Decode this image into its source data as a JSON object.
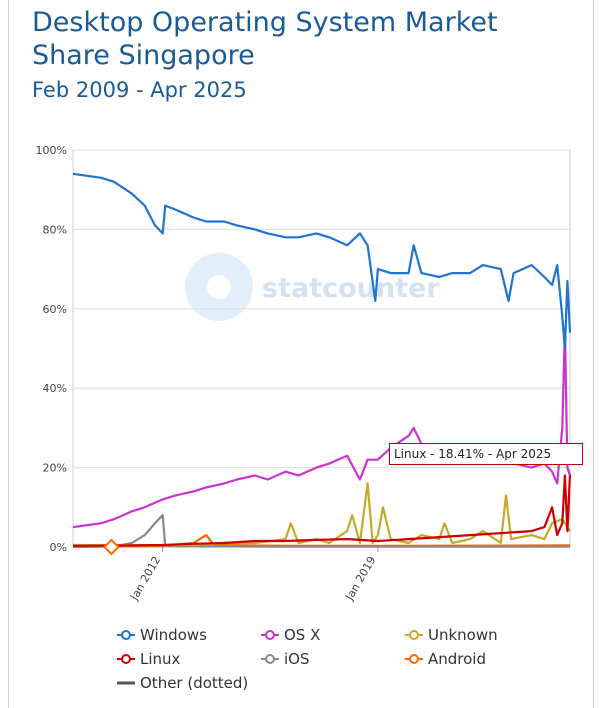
{
  "header": {
    "title": "Desktop Operating System Market Share Singapore",
    "subtitle": "Feb 2009 - Apr 2025"
  },
  "watermark": {
    "text": "statcounter"
  },
  "tooltip": {
    "text": "Linux - 18.41% - Apr 2025"
  },
  "colors": {
    "Windows": "#1e74d0",
    "OS X": "#cc33cc",
    "Unknown": "#c8a82a",
    "Linux": "#cc0000",
    "iOS": "#888888",
    "Android": "#ff6600",
    "Other (dotted)": "#555555",
    "grid": "#dddddd",
    "title": "#1a5a96"
  },
  "chart_data": {
    "type": "line",
    "title": "Desktop Operating System Market Share Singapore",
    "subtitle": "Feb 2009 - Apr 2025",
    "x_range": [
      "2009-02",
      "2025-04"
    ],
    "ylim": [
      0,
      100
    ],
    "y_ticks": [
      "0%",
      "20%",
      "40%",
      "60%",
      "80%",
      "100%"
    ],
    "x_ticks": [
      {
        "label": "Jan 2012",
        "x": "2012-01"
      },
      {
        "label": "Jan 2019",
        "x": "2019-01"
      }
    ],
    "grid": "horizontal",
    "legend_position": "bottom",
    "series": [
      {
        "name": "Windows",
        "points": [
          [
            "2009-02",
            94
          ],
          [
            "2010-01",
            93
          ],
          [
            "2010-06",
            92
          ],
          [
            "2011-01",
            89
          ],
          [
            "2011-06",
            86
          ],
          [
            "2011-10",
            81
          ],
          [
            "2012-01",
            79
          ],
          [
            "2012-02",
            86
          ],
          [
            "2012-06",
            85
          ],
          [
            "2013-01",
            83
          ],
          [
            "2013-06",
            82
          ],
          [
            "2014-01",
            82
          ],
          [
            "2014-06",
            81
          ],
          [
            "2015-01",
            80
          ],
          [
            "2015-06",
            79
          ],
          [
            "2016-01",
            78
          ],
          [
            "2016-06",
            78
          ],
          [
            "2017-01",
            79
          ],
          [
            "2017-06",
            78
          ],
          [
            "2018-01",
            76
          ],
          [
            "2018-06",
            79
          ],
          [
            "2018-09",
            76
          ],
          [
            "2018-12",
            62
          ],
          [
            "2019-01",
            70
          ],
          [
            "2019-06",
            69
          ],
          [
            "2020-01",
            69
          ],
          [
            "2020-03",
            76
          ],
          [
            "2020-06",
            69
          ],
          [
            "2021-01",
            68
          ],
          [
            "2021-06",
            69
          ],
          [
            "2022-01",
            69
          ],
          [
            "2022-06",
            71
          ],
          [
            "2023-01",
            70
          ],
          [
            "2023-04",
            62
          ],
          [
            "2023-06",
            69
          ],
          [
            "2024-01",
            71
          ],
          [
            "2024-06",
            68
          ],
          [
            "2024-09",
            66
          ],
          [
            "2024-11",
            71
          ],
          [
            "2025-01",
            58
          ],
          [
            "2025-02",
            50
          ],
          [
            "2025-03",
            67
          ],
          [
            "2025-04",
            54
          ]
        ]
      },
      {
        "name": "OS X",
        "points": [
          [
            "2009-02",
            5
          ],
          [
            "2010-01",
            6
          ],
          [
            "2010-06",
            7
          ],
          [
            "2011-01",
            9
          ],
          [
            "2011-06",
            10
          ],
          [
            "2012-01",
            12
          ],
          [
            "2012-06",
            13
          ],
          [
            "2013-01",
            14
          ],
          [
            "2013-06",
            15
          ],
          [
            "2014-01",
            16
          ],
          [
            "2014-06",
            17
          ],
          [
            "2015-01",
            18
          ],
          [
            "2015-06",
            17
          ],
          [
            "2016-01",
            19
          ],
          [
            "2016-06",
            18
          ],
          [
            "2017-01",
            20
          ],
          [
            "2017-06",
            21
          ],
          [
            "2018-01",
            23
          ],
          [
            "2018-06",
            17
          ],
          [
            "2018-09",
            22
          ],
          [
            "2019-01",
            22
          ],
          [
            "2019-06",
            25
          ],
          [
            "2020-01",
            28
          ],
          [
            "2020-03",
            30
          ],
          [
            "2020-06",
            26
          ],
          [
            "2021-01",
            24
          ],
          [
            "2021-06",
            23
          ],
          [
            "2022-01",
            22
          ],
          [
            "2022-06",
            21
          ],
          [
            "2023-01",
            22
          ],
          [
            "2023-06",
            21
          ],
          [
            "2024-01",
            20
          ],
          [
            "2024-06",
            21
          ],
          [
            "2024-09",
            19
          ],
          [
            "2024-11",
            16
          ],
          [
            "2025-01",
            30
          ],
          [
            "2025-02",
            55
          ],
          [
            "2025-03",
            20
          ],
          [
            "2025-04",
            18
          ]
        ]
      },
      {
        "name": "Unknown",
        "points": [
          [
            "2009-02",
            0.5
          ],
          [
            "2011-06",
            0.4
          ],
          [
            "2013-01",
            0.5
          ],
          [
            "2014-01",
            1
          ],
          [
            "2015-01",
            1
          ],
          [
            "2016-01",
            2
          ],
          [
            "2016-03",
            6
          ],
          [
            "2016-06",
            1
          ],
          [
            "2017-01",
            2
          ],
          [
            "2017-06",
            1
          ],
          [
            "2018-01",
            4
          ],
          [
            "2018-03",
            8
          ],
          [
            "2018-06",
            1
          ],
          [
            "2018-09",
            16
          ],
          [
            "2018-11",
            1
          ],
          [
            "2019-01",
            3
          ],
          [
            "2019-03",
            10
          ],
          [
            "2019-06",
            2
          ],
          [
            "2020-01",
            1
          ],
          [
            "2020-06",
            3
          ],
          [
            "2021-01",
            2
          ],
          [
            "2021-03",
            6
          ],
          [
            "2021-06",
            1
          ],
          [
            "2022-01",
            2
          ],
          [
            "2022-06",
            4
          ],
          [
            "2023-01",
            1
          ],
          [
            "2023-03",
            13
          ],
          [
            "2023-05",
            2
          ],
          [
            "2024-01",
            3
          ],
          [
            "2024-06",
            2
          ],
          [
            "2024-09",
            6
          ],
          [
            "2025-01",
            7
          ],
          [
            "2025-04",
            4
          ]
        ]
      },
      {
        "name": "Linux",
        "points": [
          [
            "2009-02",
            0.3
          ],
          [
            "2011-01",
            0.4
          ],
          [
            "2012-01",
            0.5
          ],
          [
            "2013-01",
            0.8
          ],
          [
            "2014-01",
            1
          ],
          [
            "2015-01",
            1.5
          ],
          [
            "2016-01",
            1.5
          ],
          [
            "2017-01",
            1.8
          ],
          [
            "2018-01",
            2
          ],
          [
            "2019-01",
            1.5
          ],
          [
            "2020-01",
            2
          ],
          [
            "2021-01",
            2.5
          ],
          [
            "2022-01",
            3
          ],
          [
            "2023-01",
            3.5
          ],
          [
            "2024-01",
            4
          ],
          [
            "2024-06",
            5
          ],
          [
            "2024-09",
            10
          ],
          [
            "2024-11",
            3
          ],
          [
            "2025-01",
            6
          ],
          [
            "2025-02",
            18
          ],
          [
            "2025-03",
            4
          ],
          [
            "2025-04",
            18.41
          ]
        ]
      },
      {
        "name": "iOS",
        "points": [
          [
            "2009-02",
            0
          ],
          [
            "2010-06",
            0.2
          ],
          [
            "2011-01",
            1
          ],
          [
            "2011-06",
            3
          ],
          [
            "2011-10",
            6
          ],
          [
            "2012-01",
            8
          ],
          [
            "2012-02",
            0.3
          ],
          [
            "2013-01",
            0.2
          ],
          [
            "2016-01",
            0.1
          ],
          [
            "2025-04",
            0.1
          ]
        ]
      },
      {
        "name": "Android",
        "points": [
          [
            "2009-02",
            0
          ],
          [
            "2012-01",
            0.3
          ],
          [
            "2013-01",
            1
          ],
          [
            "2013-06",
            3
          ],
          [
            "2013-09",
            0.5
          ],
          [
            "2016-01",
            0.3
          ],
          [
            "2020-01",
            0.3
          ],
          [
            "2025-04",
            0.4
          ]
        ]
      },
      {
        "name": "Other (dotted)",
        "points": [
          [
            "2009-02",
            0.2
          ],
          [
            "2015-01",
            0.2
          ],
          [
            "2020-01",
            0.2
          ],
          [
            "2025-04",
            0.3
          ]
        ]
      }
    ],
    "legend": [
      "Windows",
      "OS X",
      "Unknown",
      "Linux",
      "iOS",
      "Android",
      "Other (dotted)"
    ]
  }
}
